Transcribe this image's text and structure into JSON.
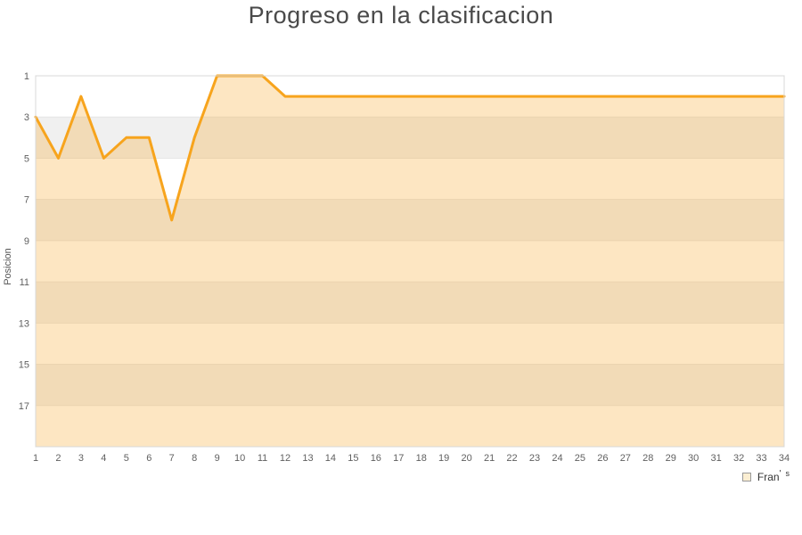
{
  "title": "Progreso en la clasificacion",
  "chart_data": {
    "type": "area",
    "title": "Progreso en la clasificacion",
    "xlabel": "",
    "ylabel": "Posicion",
    "x": [
      1,
      2,
      3,
      4,
      5,
      6,
      7,
      8,
      9,
      10,
      11,
      12,
      13,
      14,
      15,
      16,
      17,
      18,
      19,
      20,
      21,
      22,
      23,
      24,
      25,
      26,
      27,
      28,
      29,
      30,
      31,
      32,
      33,
      34
    ],
    "series": [
      {
        "name": "Fran's",
        "values": [
          3,
          5,
          2,
          5,
          4,
          4,
          8,
          4,
          1,
          1,
          1,
          2,
          2,
          2,
          2,
          2,
          2,
          2,
          2,
          2,
          2,
          2,
          2,
          2,
          2,
          2,
          2,
          2,
          2,
          2,
          2,
          2,
          2,
          2
        ]
      }
    ],
    "x_min": 1,
    "x_max": 34,
    "y_top": 1,
    "y_bottom": 19,
    "y_axis_inverted": true,
    "y_ticks": [
      1,
      3,
      5,
      7,
      9,
      11,
      13,
      15,
      17
    ],
    "grid": "horizontal-bands-alternating",
    "legend_position": "bottom-right",
    "colors": {
      "line": "#F7A41D",
      "area_fill": "rgba(247,164,29,0.27)",
      "band_light": "#FFFFFF",
      "band_dark": "#F0F0F0",
      "gridline": "#E6E6E6",
      "plot_border": "#D8D8D8",
      "tick_text": "#606060",
      "title_text": "#4A4A4A"
    }
  },
  "legend": {
    "label_main": "Fran",
    "label_apostrophe": "'",
    "label_sup": "s"
  }
}
